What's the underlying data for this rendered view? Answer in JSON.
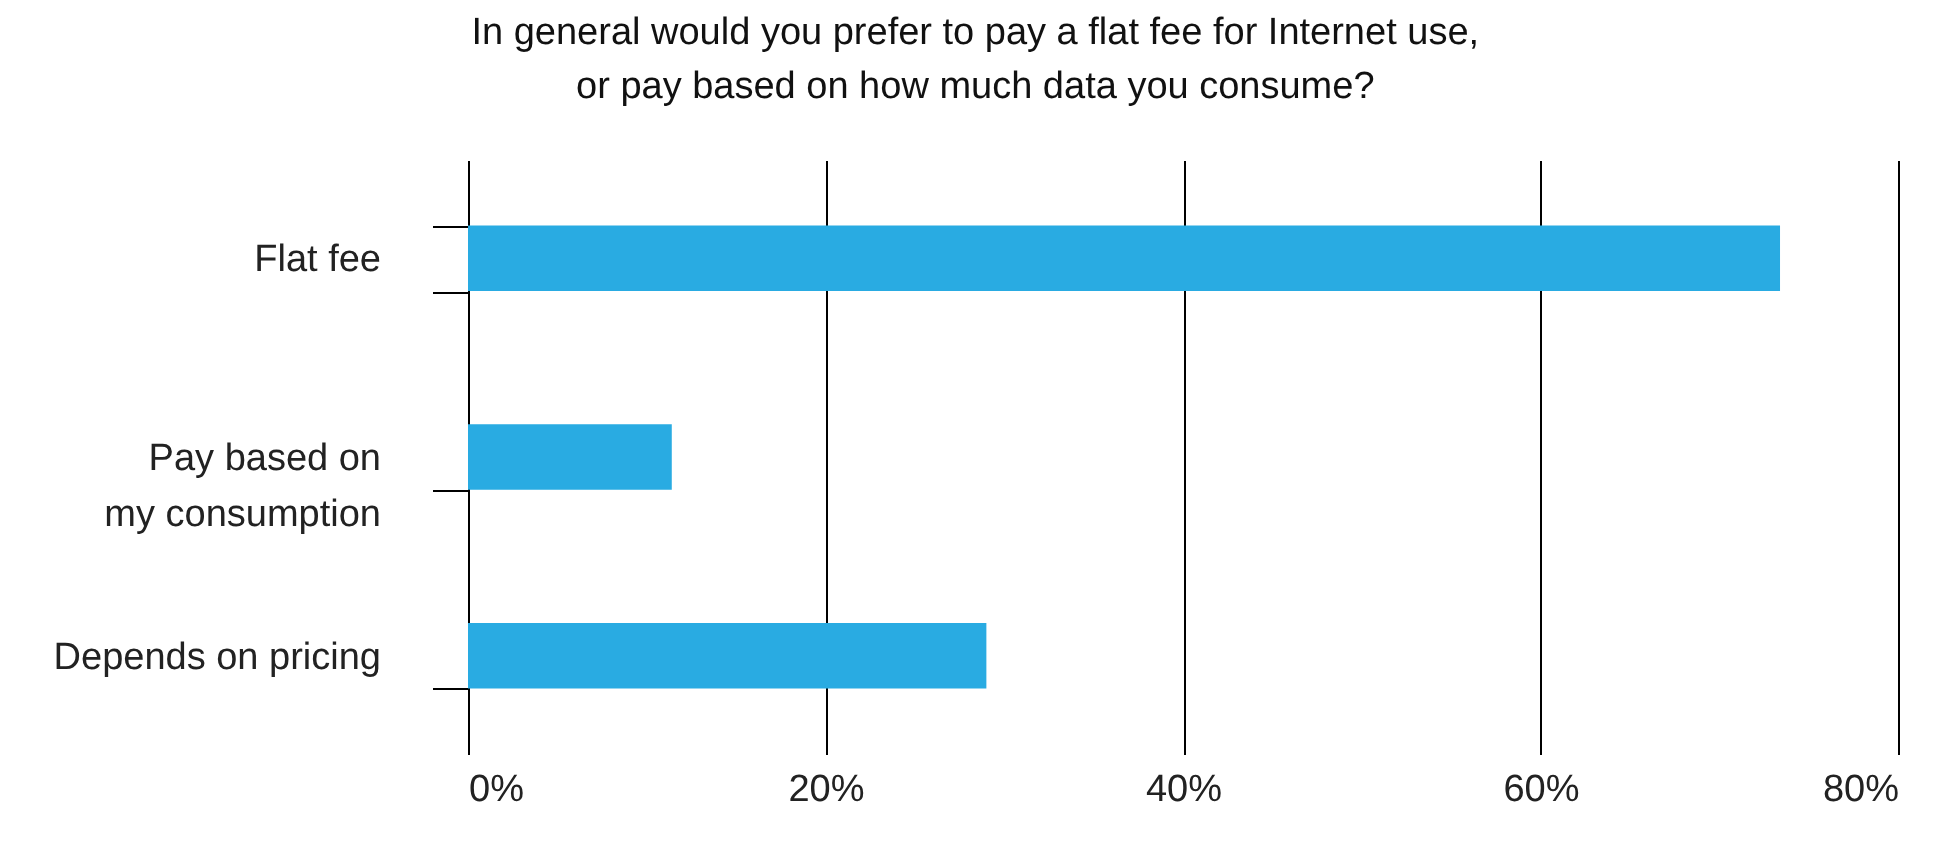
{
  "chart_data": {
    "type": "bar",
    "orientation": "horizontal",
    "title": "In general would you prefer to pay a flat fee for Internet use,\nor pay based on how much data you consume?",
    "categories": [
      "Flat fee",
      "Pay based on my consumption",
      "Depends on pricing"
    ],
    "values": [
      73.4,
      11.4,
      29.0
    ],
    "color": "#29abe2",
    "xlim": [
      0,
      80
    ],
    "xticks": [
      {
        "value": 0,
        "label": "0%"
      },
      {
        "value": 20,
        "label": "20%"
      },
      {
        "value": 40,
        "label": "40%"
      },
      {
        "value": 60,
        "label": "60%"
      },
      {
        "value": 80,
        "label": "80%"
      }
    ],
    "grid": "x"
  }
}
